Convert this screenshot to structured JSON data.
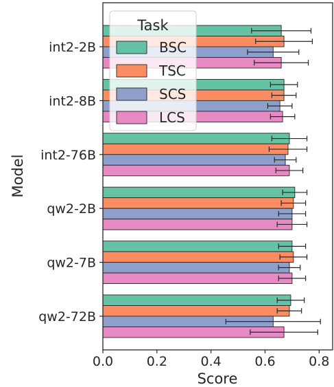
{
  "chart_data": {
    "type": "bar",
    "orientation": "horizontal",
    "xlabel": "Score",
    "ylabel": "Model",
    "xlim": [
      0.0,
      0.85
    ],
    "xticks": [
      "0.0",
      "0.2",
      "0.4",
      "0.6",
      "0.8"
    ],
    "grid": false,
    "legend": {
      "title": "Task",
      "placement": "top-left"
    },
    "categories": [
      "int2-2B",
      "int2-8B",
      "int2-76B",
      "qw2-2B",
      "qw2-7B",
      "qw2-72B"
    ],
    "series": [
      {
        "name": "BSC",
        "color": "#66c2a5",
        "values": [
          0.66,
          0.67,
          0.69,
          0.71,
          0.7,
          0.695
        ],
        "errors": [
          0.11,
          0.05,
          0.065,
          0.045,
          0.05,
          0.05
        ]
      },
      {
        "name": "TSC",
        "color": "#fc8d62",
        "values": [
          0.67,
          0.67,
          0.685,
          0.705,
          0.705,
          0.69
        ],
        "errors": [
          0.105,
          0.045,
          0.07,
          0.045,
          0.05,
          0.045
        ]
      },
      {
        "name": "SCS",
        "color": "#8da0cb",
        "values": [
          0.63,
          0.655,
          0.675,
          0.7,
          0.69,
          0.63
        ],
        "errors": [
          0.095,
          0.045,
          0.04,
          0.05,
          0.04,
          0.175
        ]
      },
      {
        "name": "LCS",
        "color": "#e78ac3",
        "values": [
          0.66,
          0.665,
          0.69,
          0.7,
          0.7,
          0.67
        ],
        "errors": [
          0.1,
          0.045,
          0.05,
          0.055,
          0.05,
          0.125
        ]
      }
    ]
  }
}
